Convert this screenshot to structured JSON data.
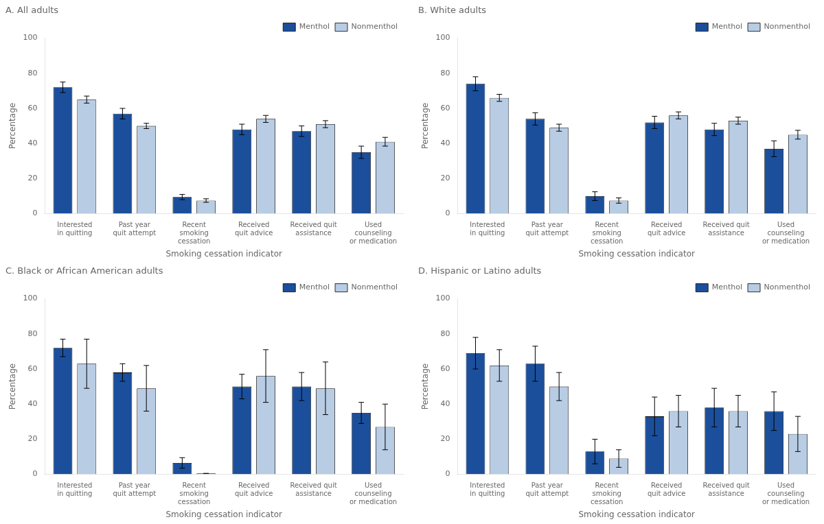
{
  "chart_data": [
    {
      "type": "bar",
      "title": "A. All adults",
      "categories": [
        "Interested\nin quitting",
        "Past year\nquit attempt",
        "Recent\nsmoking\ncessation",
        "Received\nquit advice",
        "Received quit\nassistance",
        "Used\ncounseling\nor medication"
      ],
      "series": [
        {
          "name": "Menthol",
          "color": "#1B4F9C",
          "values": [
            72,
            57,
            9.5,
            48,
            47,
            35
          ],
          "errors": [
            3,
            3,
            1.5,
            3,
            3,
            3.5
          ]
        },
        {
          "name": "Nonmenthol",
          "color": "#B8CCE4",
          "values": [
            65,
            50,
            7.5,
            54,
            51,
            41
          ],
          "errors": [
            2,
            1.5,
            1,
            2,
            2,
            2.5
          ]
        }
      ],
      "xlabel": "Smoking cessation indicator",
      "ylabel": "Percentage",
      "ylim": [
        0,
        100
      ],
      "yticks": [
        0,
        20,
        40,
        60,
        80,
        100
      ],
      "grid": false,
      "legend": "upper right"
    },
    {
      "type": "bar",
      "title": "B. White adults",
      "categories": [
        "Interested\nin quitting",
        "Past year\nquit attempt",
        "Recent\nsmoking\ncessation",
        "Received\nquit advice",
        "Received quit\nassistance",
        "Used\ncounseling\nor medication"
      ],
      "series": [
        {
          "name": "Menthol",
          "color": "#1B4F9C",
          "values": [
            74,
            54,
            10,
            52,
            48,
            37
          ],
          "errors": [
            4,
            3.5,
            2.5,
            3.5,
            3.5,
            4.5
          ]
        },
        {
          "name": "Nonmenthol",
          "color": "#B8CCE4",
          "values": [
            66,
            49,
            7.5,
            56,
            53,
            45
          ],
          "errors": [
            2,
            2,
            1.5,
            2,
            2,
            2.5
          ]
        }
      ],
      "xlabel": "Smoking cessation indicator",
      "ylabel": "Percentage",
      "ylim": [
        0,
        100
      ],
      "yticks": [
        0,
        20,
        40,
        60,
        80,
        100
      ],
      "grid": false,
      "legend": "upper right"
    },
    {
      "type": "bar",
      "title": "C. Black or African American adults",
      "categories": [
        "Interested\nin quitting",
        "Past year\nquit attempt",
        "Recent\nsmoking\ncessation",
        "Received\nquit advice",
        "Received quit\nassistance",
        "Used\ncounseling\nor medication"
      ],
      "series": [
        {
          "name": "Menthol",
          "color": "#1B4F9C",
          "values": [
            72,
            58,
            6.5,
            50,
            50,
            35
          ],
          "errors": [
            5,
            5,
            3,
            7,
            8,
            6
          ]
        },
        {
          "name": "Nonmenthol",
          "color": "#B8CCE4",
          "values": [
            63,
            49,
            0.5,
            56,
            49,
            27
          ],
          "errors": [
            14,
            13,
            0,
            15,
            15,
            13
          ]
        }
      ],
      "xlabel": "Smoking cessation indicator",
      "ylabel": "Percentage",
      "ylim": [
        0,
        100
      ],
      "yticks": [
        0,
        20,
        40,
        60,
        80,
        100
      ],
      "grid": false,
      "legend": "upper right"
    },
    {
      "type": "bar",
      "title": "D. Hispanic or Latino adults",
      "categories": [
        "Interested\nin quitting",
        "Past year\nquit attempt",
        "Recent\nsmoking\ncessation",
        "Received\nquit advice",
        "Received quit\nassistance",
        "Used\ncounseling\nor medication"
      ],
      "series": [
        {
          "name": "Menthol",
          "color": "#1B4F9C",
          "values": [
            69,
            63,
            13,
            33,
            38,
            36
          ],
          "errors": [
            9,
            10,
            7,
            11,
            11,
            11
          ]
        },
        {
          "name": "Nonmenthol",
          "color": "#B8CCE4",
          "values": [
            62,
            50,
            9,
            36,
            36,
            23
          ],
          "errors": [
            9,
            8,
            5,
            9,
            9,
            10
          ]
        }
      ],
      "xlabel": "Smoking cessation indicator",
      "ylabel": "Percentage",
      "ylim": [
        0,
        100
      ],
      "yticks": [
        0,
        20,
        40,
        60,
        80,
        100
      ],
      "grid": false,
      "legend": "upper right"
    }
  ]
}
